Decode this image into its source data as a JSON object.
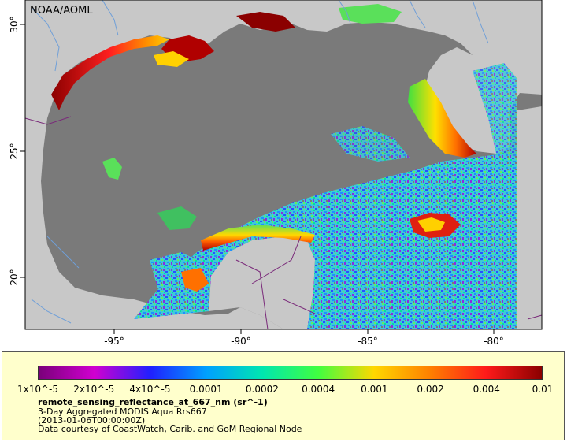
{
  "map": {
    "watermark": "NOAA/AOML",
    "lon_ticks": [
      "-95°",
      "-90°",
      "-85°",
      "-80°"
    ],
    "lat_ticks": [
      "30°",
      "25°",
      "20°"
    ],
    "colors": {
      "ocean_no_data": "#7a7a7a",
      "land": "#c8c8c8",
      "rivers": "#6f9fd8",
      "borders": "#7a2a7a"
    }
  },
  "legend": {
    "colorbar_labels": [
      "1x10^-5",
      "2x10^-5",
      "4x10^-5",
      "0.0001",
      "0.0002",
      "0.0004",
      "0.001",
      "0.002",
      "0.004",
      "0.01"
    ],
    "variable": "remote_sensing_reflectance_at_667_nm (sr^-1)",
    "description": "3-Day Aggregated MODIS Aqua Rrs667",
    "time": "(2013-01-06T00:00:00Z)",
    "credit": "Data courtesy of CoastWatch, Carib. and GoM Regional Node",
    "colors": [
      "#7a007a",
      "#d000d0",
      "#2020ff",
      "#00a0ff",
      "#00e6b0",
      "#40ff40",
      "#ffd700",
      "#ff8000",
      "#ff1a1a",
      "#8b0000"
    ]
  }
}
